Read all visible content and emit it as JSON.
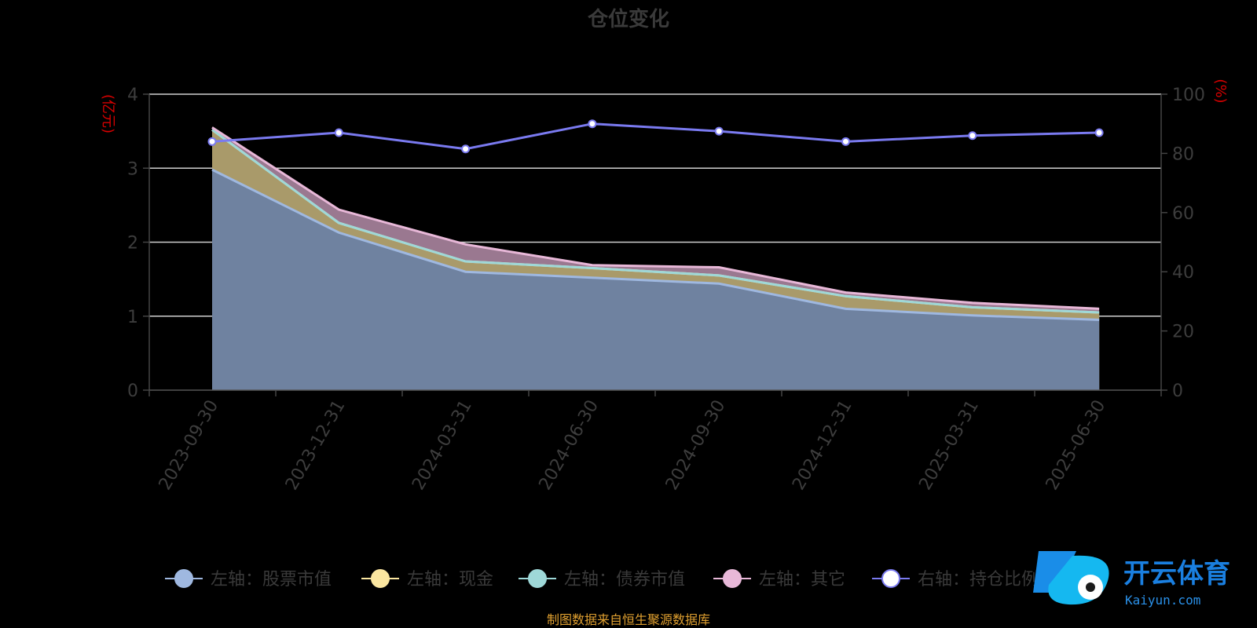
{
  "chart_data": {
    "type": "area",
    "title": "仓位变化",
    "categories": [
      "2023-09-30",
      "2023-12-31",
      "2024-03-31",
      "2024-06-30",
      "2024-09-30",
      "2024-12-31",
      "2025-03-31",
      "2025-06-30"
    ],
    "left_axis": {
      "unit_label": "(亿元)",
      "ylim": [
        0,
        4
      ],
      "ticks": [
        0,
        1,
        2,
        3,
        4
      ]
    },
    "right_axis": {
      "unit_label": "(%)",
      "ylim": [
        0,
        100
      ],
      "ticks": [
        0,
        20,
        40,
        60,
        80,
        100
      ]
    },
    "series": [
      {
        "name": "左轴：股票市值",
        "axis": "left",
        "stack": true,
        "color": "#9fb8e0",
        "fill": "#6f82a0",
        "values": [
          2.98,
          2.13,
          1.6,
          1.52,
          1.44,
          1.1,
          1.01,
          0.95
        ]
      },
      {
        "name": "左轴：现金",
        "axis": "left",
        "stack": true,
        "color": "#fbe6a0",
        "fill": "#a99a6a",
        "values": [
          0.54,
          0.13,
          0.14,
          0.13,
          0.11,
          0.17,
          0.11,
          0.1
        ]
      },
      {
        "name": "左轴：债券市值",
        "axis": "left",
        "stack": true,
        "color": "#9ed8d8",
        "fill": "#8fbcbc",
        "values": [
          0,
          0,
          0,
          0,
          0,
          0,
          0,
          0
        ]
      },
      {
        "name": "左轴：其它",
        "axis": "left",
        "stack": true,
        "color": "#e8b8d8",
        "fill": "#9a7890",
        "values": [
          0.03,
          0.18,
          0.23,
          0.04,
          0.11,
          0.05,
          0.06,
          0.05
        ]
      },
      {
        "name": "右轴：持仓比例",
        "axis": "right",
        "stack": false,
        "color": "#7a7af0",
        "values": [
          84,
          87,
          81.5,
          90,
          87.5,
          84,
          86,
          87
        ]
      }
    ],
    "grid": true,
    "legend_position": "bottom"
  },
  "footer": {
    "source": "制图数据来自恒生聚源数据库"
  },
  "watermark": {
    "name": "开云体育",
    "url": "Kaiyun.com"
  }
}
